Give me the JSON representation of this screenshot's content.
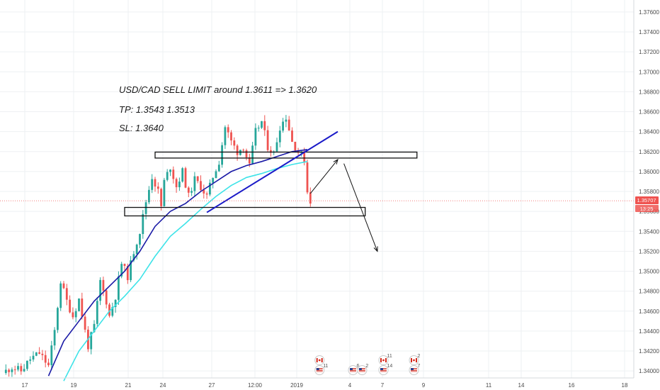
{
  "chart_data": {
    "type": "candlestick",
    "symbol_pair": "USD/CAD",
    "x_tick_labels": [
      "17",
      "19",
      "21",
      "24",
      "27",
      "12:00",
      "2019",
      "4",
      "7",
      "9",
      "11",
      "14",
      "16",
      "18"
    ],
    "y_tick_labels": [
      "1.37600",
      "1.37400",
      "1.37200",
      "1.37000",
      "1.36800",
      "1.36600",
      "1.36400",
      "1.36200",
      "1.36000",
      "1.35800",
      "1.35600",
      "1.35400",
      "1.35200",
      "1.35000",
      "1.34800",
      "1.34600",
      "1.34400",
      "1.34200",
      "1.34000"
    ],
    "y_tick_values": [
      1.376,
      1.374,
      1.372,
      1.37,
      1.368,
      1.366,
      1.364,
      1.362,
      1.36,
      1.358,
      1.356,
      1.354,
      1.352,
      1.35,
      1.348,
      1.346,
      1.344,
      1.342,
      1.34
    ],
    "ylim": [
      1.3393,
      1.3772
    ],
    "current_price": 1.35707,
    "current_price_label": "1.35707",
    "countdown_label": "13:25",
    "price_path": [
      [
        0,
        1.3398
      ],
      [
        3,
        1.3404
      ],
      [
        6,
        1.34
      ],
      [
        9,
        1.3412
      ],
      [
        12,
        1.3418
      ],
      [
        15,
        1.3405
      ],
      [
        17,
        1.344
      ],
      [
        19,
        1.349
      ],
      [
        21,
        1.347
      ],
      [
        23,
        1.3455
      ],
      [
        25,
        1.3472
      ],
      [
        27,
        1.344
      ],
      [
        28,
        1.3425
      ],
      [
        30,
        1.3445
      ],
      [
        32,
        1.349
      ],
      [
        34,
        1.347
      ],
      [
        35,
        1.3455
      ],
      [
        37,
        1.3475
      ],
      [
        39,
        1.3508
      ],
      [
        41,
        1.3495
      ],
      [
        43,
        1.352
      ],
      [
        45,
        1.354
      ],
      [
        47,
        1.357
      ],
      [
        49,
        1.3595
      ],
      [
        51,
        1.358
      ],
      [
        52,
        1.3565
      ],
      [
        53,
        1.359
      ],
      [
        55,
        1.3605
      ],
      [
        57,
        1.3585
      ],
      [
        59,
        1.36
      ],
      [
        61,
        1.3575
      ],
      [
        63,
        1.3592
      ],
      [
        65,
        1.3585
      ],
      [
        67,
        1.3575
      ],
      [
        69,
        1.3595
      ],
      [
        71,
        1.361
      ],
      [
        73,
        1.3645
      ],
      [
        75,
        1.363
      ],
      [
        77,
        1.362
      ],
      [
        79,
        1.3625
      ],
      [
        81,
        1.3605
      ],
      [
        83,
        1.364
      ],
      [
        85,
        1.365
      ],
      [
        87,
        1.3625
      ],
      [
        89,
        1.3618
      ],
      [
        91,
        1.3645
      ],
      [
        93,
        1.3655
      ],
      [
        95,
        1.363
      ],
      [
        97,
        1.362
      ],
      [
        99,
        1.3612
      ],
      [
        100,
        1.358
      ],
      [
        101,
        1.3571
      ]
    ],
    "series": [
      {
        "name": "",
        "color": "#1a1aa6",
        "points": [
          [
            15,
            1.3395
          ],
          [
            20,
            1.343
          ],
          [
            25,
            1.345
          ],
          [
            30,
            1.347
          ],
          [
            35,
            1.3485
          ],
          [
            40,
            1.35
          ],
          [
            45,
            1.352
          ],
          [
            50,
            1.3545
          ],
          [
            55,
            1.356
          ],
          [
            60,
            1.3568
          ],
          [
            65,
            1.358
          ],
          [
            70,
            1.359
          ],
          [
            75,
            1.36
          ],
          [
            80,
            1.3606
          ],
          [
            85,
            1.361
          ],
          [
            90,
            1.3615
          ],
          [
            95,
            1.362
          ],
          [
            100,
            1.3622
          ]
        ]
      },
      {
        "name": "",
        "color": "#3ee3e8",
        "points": [
          [
            20,
            1.339
          ],
          [
            25,
            1.342
          ],
          [
            30,
            1.344
          ],
          [
            35,
            1.346
          ],
          [
            40,
            1.3475
          ],
          [
            45,
            1.3492
          ],
          [
            50,
            1.3515
          ],
          [
            55,
            1.3535
          ],
          [
            60,
            1.3548
          ],
          [
            65,
            1.3562
          ],
          [
            70,
            1.3575
          ],
          [
            75,
            1.3586
          ],
          [
            80,
            1.3594
          ],
          [
            85,
            1.3598
          ],
          [
            90,
            1.3603
          ],
          [
            95,
            1.3607
          ],
          [
            100,
            1.361
          ]
        ]
      }
    ],
    "trendline": {
      "color": "#1a1ac8",
      "points": [
        [
          67,
          1.3559
        ],
        [
          110,
          1.364
        ]
      ]
    },
    "zones": [
      {
        "x": [
          50,
          136
        ],
        "y": [
          1.36135,
          1.36195
        ]
      },
      {
        "x": [
          40,
          119
        ],
        "y": [
          1.35555,
          1.3564
        ]
      }
    ],
    "projection_arrows": [
      {
        "points": [
          [
            101,
            1.3578
          ],
          [
            110,
            1.3612
          ]
        ]
      },
      {
        "points": [
          [
            112,
            1.3608
          ],
          [
            123,
            1.352
          ]
        ]
      }
    ],
    "annotations": [
      "USD/CAD SELL LIMIT around 1.3611 => 1.3620",
      "TP: 1.3543 1.3513",
      "SL: 1.3640"
    ],
    "events": [
      {
        "flag": "ca",
        "count": "",
        "x": 104
      },
      {
        "flag": "us",
        "count": "11",
        "x": 104
      },
      {
        "flag": "us",
        "count": "6",
        "x": 115
      },
      {
        "flag": "us",
        "count": "2",
        "x": 118
      },
      {
        "flag": "ca",
        "count": "11",
        "x": 125
      },
      {
        "flag": "us",
        "count": "14",
        "x": 125
      },
      {
        "flag": "ca",
        "count": "2",
        "x": 135
      },
      {
        "flag": "us",
        "count": "7",
        "x": 135
      }
    ],
    "colors": {
      "up": "#26a69a",
      "down": "#ef5350",
      "axis_tag": "#ef5350",
      "grid": "#eef0f3"
    }
  }
}
